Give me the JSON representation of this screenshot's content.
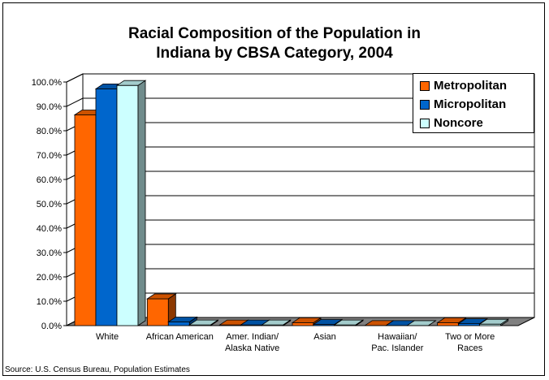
{
  "chart_data": {
    "type": "bar",
    "title": "Racial Composition of the Population in\nIndiana by CBSA Category, 2004",
    "categories": [
      "White",
      "African American",
      "Amer. Indian/\nAlaska Native",
      "Asian",
      "Hawaiian/\nPac. Islander",
      "Two or More\nRaces"
    ],
    "series": [
      {
        "name": "Metropolitan",
        "values": [
          86.5,
          11.0,
          0.3,
          1.2,
          0.05,
          1.2
        ],
        "color": "#FF6600"
      },
      {
        "name": "Micropolitan",
        "values": [
          97.2,
          1.5,
          0.3,
          0.5,
          0.03,
          0.8
        ],
        "color": "#0066CC"
      },
      {
        "name": "Noncore",
        "values": [
          98.6,
          0.3,
          0.3,
          0.3,
          0.02,
          0.6
        ],
        "color": "#CCFFFF"
      }
    ],
    "ylim": [
      0,
      100
    ],
    "yticks": [
      "0.0%",
      "10.0%",
      "20.0%",
      "30.0%",
      "40.0%",
      "50.0%",
      "60.0%",
      "70.0%",
      "80.0%",
      "90.0%",
      "100.0%"
    ],
    "grid": true,
    "legend_position": "top-right"
  },
  "source": "Source: U.S. Census Bureau, Population Estimates"
}
